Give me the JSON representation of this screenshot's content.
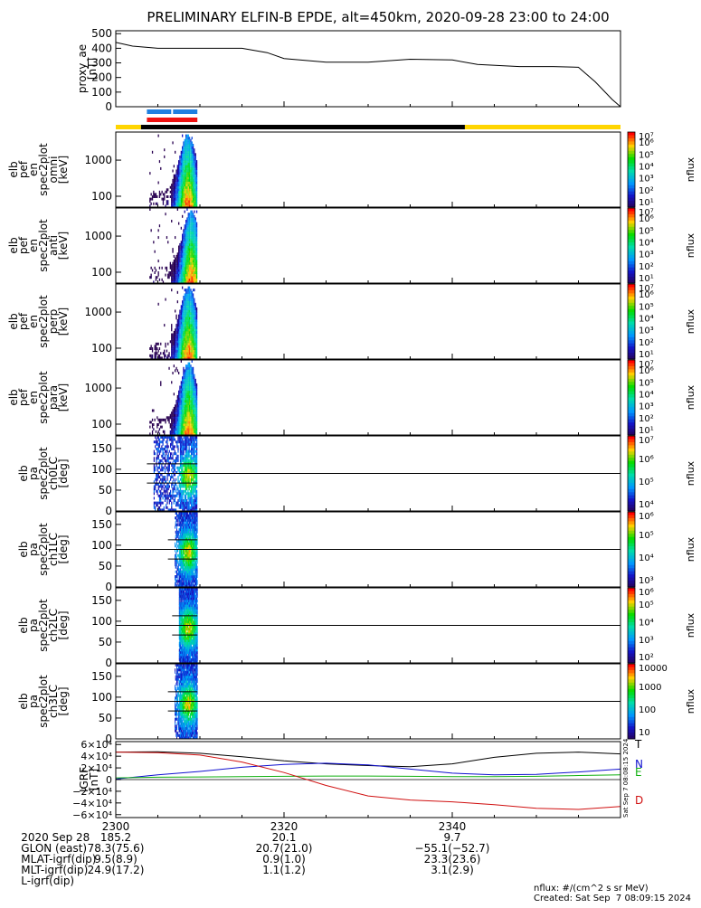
{
  "title": "PRELIMINARY ELFIN-B EPDE, alt=450km, 2020-09-28 23:00 to 24:00",
  "colors": {
    "proxy_line": "#000000",
    "science_blue": "#1f7fe0",
    "science_red": "#ee1111",
    "bar_yellow": "#ffd500",
    "bar_black": "#000000",
    "igrf_T": "#000000",
    "igrf_N": "#1010d0",
    "igrf_E": "#10b010",
    "igrf_D": "#d01010"
  },
  "status_bars": {
    "science_bars": [
      {
        "color": "blue",
        "start_min": 3.7,
        "end_min": 9.7
      },
      {
        "color": "red",
        "start_min": 3.7,
        "end_min": 9.7
      }
    ],
    "coverage": [
      {
        "color": "yellow",
        "start_min": 0,
        "end_min": 3.0
      },
      {
        "color": "black",
        "start_min": 3.0,
        "end_min": 41.5
      },
      {
        "color": "yellow",
        "start_min": 41.5,
        "end_min": 60
      }
    ]
  },
  "chart_data": [
    {
      "type": "line",
      "ylabel": "proxy_ae [nT]",
      "ylabel_lines": [
        "proxy_ae",
        "[nT]"
      ],
      "ylim": [
        0,
        520
      ],
      "yticks": [
        "0",
        "100",
        "200",
        "300",
        "400",
        "500"
      ],
      "x": [
        0,
        2,
        5,
        10,
        15,
        18,
        20,
        25,
        30,
        35,
        40,
        43,
        48,
        52,
        55,
        57,
        59,
        60
      ],
      "values": [
        440,
        415,
        400,
        400,
        400,
        370,
        330,
        305,
        305,
        325,
        320,
        290,
        275,
        275,
        270,
        170,
        50,
        0
      ]
    },
    {
      "type": "heatmap",
      "ylabel_lines": [
        "elb",
        "pef",
        "en",
        "spec2plot",
        "omni",
        "[keV]"
      ],
      "yscale": "log",
      "ylim": [
        50,
        6000
      ],
      "yticks": [
        "100",
        "1000"
      ],
      "zlabel": "nflux",
      "zticks": [
        "10¹",
        "10²",
        "10³",
        "10⁴",
        "10⁵",
        "10⁶",
        "10⁷"
      ],
      "zlim_log": [
        1,
        7
      ],
      "active_min": [
        4.0,
        9.7
      ],
      "peak_min": 8.5
    },
    {
      "type": "heatmap",
      "ylabel_lines": [
        "elb",
        "pef",
        "en",
        "spec2plot",
        "anti",
        "[keV]"
      ],
      "yscale": "log",
      "ylim": [
        50,
        6000
      ],
      "yticks": [
        "100",
        "1000"
      ],
      "zlabel": "nflux",
      "zticks": [
        "10¹",
        "10²",
        "10³",
        "10⁴",
        "10⁵",
        "10⁶",
        "10⁷"
      ],
      "zlim_log": [
        1,
        7
      ],
      "active_min": [
        4.0,
        9.7
      ],
      "peak_min": 8.9
    },
    {
      "type": "heatmap",
      "ylabel_lines": [
        "elb",
        "pef",
        "en",
        "spec2plot",
        "perp",
        "[keV]"
      ],
      "yscale": "log",
      "ylim": [
        50,
        6000
      ],
      "yticks": [
        "100",
        "1000"
      ],
      "zlabel": "nflux",
      "zticks": [
        "10¹",
        "10²",
        "10³",
        "10⁴",
        "10⁵",
        "10⁶",
        "10⁷"
      ],
      "zlim_log": [
        1,
        7
      ],
      "active_min": [
        4.0,
        9.7
      ],
      "peak_min": 8.6
    },
    {
      "type": "heatmap",
      "ylabel_lines": [
        "elb",
        "pef",
        "en",
        "spec2plot",
        "para",
        "[keV]"
      ],
      "yscale": "log",
      "ylim": [
        50,
        6000
      ],
      "yticks": [
        "100",
        "1000"
      ],
      "zlabel": "nflux",
      "zticks": [
        "10¹",
        "10²",
        "10³",
        "10⁴",
        "10⁵",
        "10⁶",
        "10⁷"
      ],
      "zlim_log": [
        1,
        7
      ],
      "active_min": [
        4.0,
        9.7
      ],
      "peak_min": 8.6
    },
    {
      "type": "heatmap",
      "ylabel_lines": [
        "elb",
        "pa",
        "spec2plot",
        "ch0LC",
        "[deg]"
      ],
      "ylim": [
        0,
        180
      ],
      "yticks": [
        "0",
        "50",
        "100",
        "150"
      ],
      "zlabel": "nflux",
      "zticks": [
        "10⁴",
        "10⁵",
        "10⁶",
        "10⁷"
      ],
      "zlim_log": [
        3.5,
        7
      ],
      "active_min": [
        4.5,
        9.7
      ],
      "losscone_deg": [
        90,
        67
      ]
    },
    {
      "type": "heatmap",
      "ylabel_lines": [
        "elb",
        "pa",
        "spec2plot",
        "ch1LC",
        "[deg]"
      ],
      "ylim": [
        0,
        180
      ],
      "yticks": [
        "0",
        "50",
        "100",
        "150"
      ],
      "zlabel": "nflux",
      "zticks": [
        "10³",
        "10⁴",
        "10⁵",
        "10⁶"
      ],
      "zlim_log": [
        2.5,
        6.5
      ],
      "active_min": [
        7.0,
        9.7
      ],
      "losscone_deg": [
        90,
        67
      ]
    },
    {
      "type": "heatmap",
      "ylabel_lines": [
        "elb",
        "pa",
        "spec2plot",
        "ch2LC",
        "[deg]"
      ],
      "ylim": [
        0,
        180
      ],
      "yticks": [
        "0",
        "50",
        "100",
        "150"
      ],
      "zlabel": "nflux",
      "zticks": [
        "10²",
        "10³",
        "10⁴",
        "10⁵",
        "10⁶"
      ],
      "zlim_log": [
        1.5,
        6.5
      ],
      "active_min": [
        7.5,
        9.7
      ],
      "losscone_deg": [
        90,
        67
      ]
    },
    {
      "type": "heatmap",
      "ylabel_lines": [
        "elb",
        "pa",
        "spec2plot",
        "ch3LC",
        "[deg]"
      ],
      "ylim": [
        0,
        180
      ],
      "yticks": [
        "0",
        "50",
        "100",
        "150"
      ],
      "zlabel": "nflux",
      "zticks": [
        "10",
        "100",
        "1000",
        "10000"
      ],
      "zlim_log": [
        1,
        4.3
      ],
      "active_min": [
        7.0,
        9.7
      ],
      "losscone_deg": [
        90,
        67
      ]
    },
    {
      "type": "line",
      "ylabel_lines": [
        "IGRF",
        "[nT]"
      ],
      "ylim": [
        -65000,
        65000
      ],
      "yticks": [
        "−6×10⁴",
        "−4×10⁴",
        "−2×10⁴",
        "0",
        "2×10⁴",
        "4×10⁴",
        "6×10⁴"
      ],
      "x": [
        0,
        5,
        10,
        15,
        20,
        25,
        30,
        35,
        40,
        45,
        50,
        55,
        60
      ],
      "series": [
        {
          "name": "T",
          "color": "#000000",
          "values": [
            47000,
            47500,
            45000,
            39000,
            32000,
            27000,
            24000,
            22000,
            27000,
            38000,
            45000,
            47000,
            44000
          ]
        },
        {
          "name": "N",
          "color": "#1010d0",
          "values": [
            1000,
            8000,
            14000,
            21000,
            26000,
            28000,
            25000,
            18000,
            11000,
            8000,
            9000,
            13000,
            18000
          ]
        },
        {
          "name": "E",
          "color": "#10b010",
          "values": [
            3000,
            4000,
            4500,
            5000,
            5500,
            6000,
            6000,
            5500,
            5000,
            5000,
            5500,
            7000,
            8000
          ]
        },
        {
          "name": "D",
          "color": "#d01010",
          "values": [
            47000,
            46000,
            42000,
            30000,
            12000,
            -10000,
            -28000,
            -35000,
            -38000,
            -43000,
            -49000,
            -51000,
            -46000
          ]
        }
      ]
    }
  ],
  "x_axis": {
    "tick_minutes": [
      0,
      20,
      40
    ],
    "rows": [
      {
        "label": "2020 Sep 28",
        "values": [
          "2300",
          "2320",
          "2340"
        ]
      },
      {
        "label": "GLON (east)",
        "values": [
          "185.2",
          "20.1",
          "9.7"
        ]
      },
      {
        "label": "MLAT-igrf(dip)",
        "values": [
          "78.3(75.6)",
          "20.7(21.0)",
          "−55.1(−52.7)"
        ]
      },
      {
        "label": "MLT-igrf(dip)",
        "values": [
          "9.5(8.9)",
          "0.9(1.0)",
          "23.3(23.6)"
        ]
      },
      {
        "label": "L-igrf(dip)",
        "values": [
          "24.9(17.2)",
          "1.1(1.2)",
          "3.1(2.9)"
        ]
      }
    ]
  },
  "footer": {
    "units": "nflux: #/(cm^2 s sr MeV)",
    "created": "Created: Sat Sep  7 08:09:15 2024",
    "stamp": "Sat Sep  7 08:08:15 2024"
  }
}
